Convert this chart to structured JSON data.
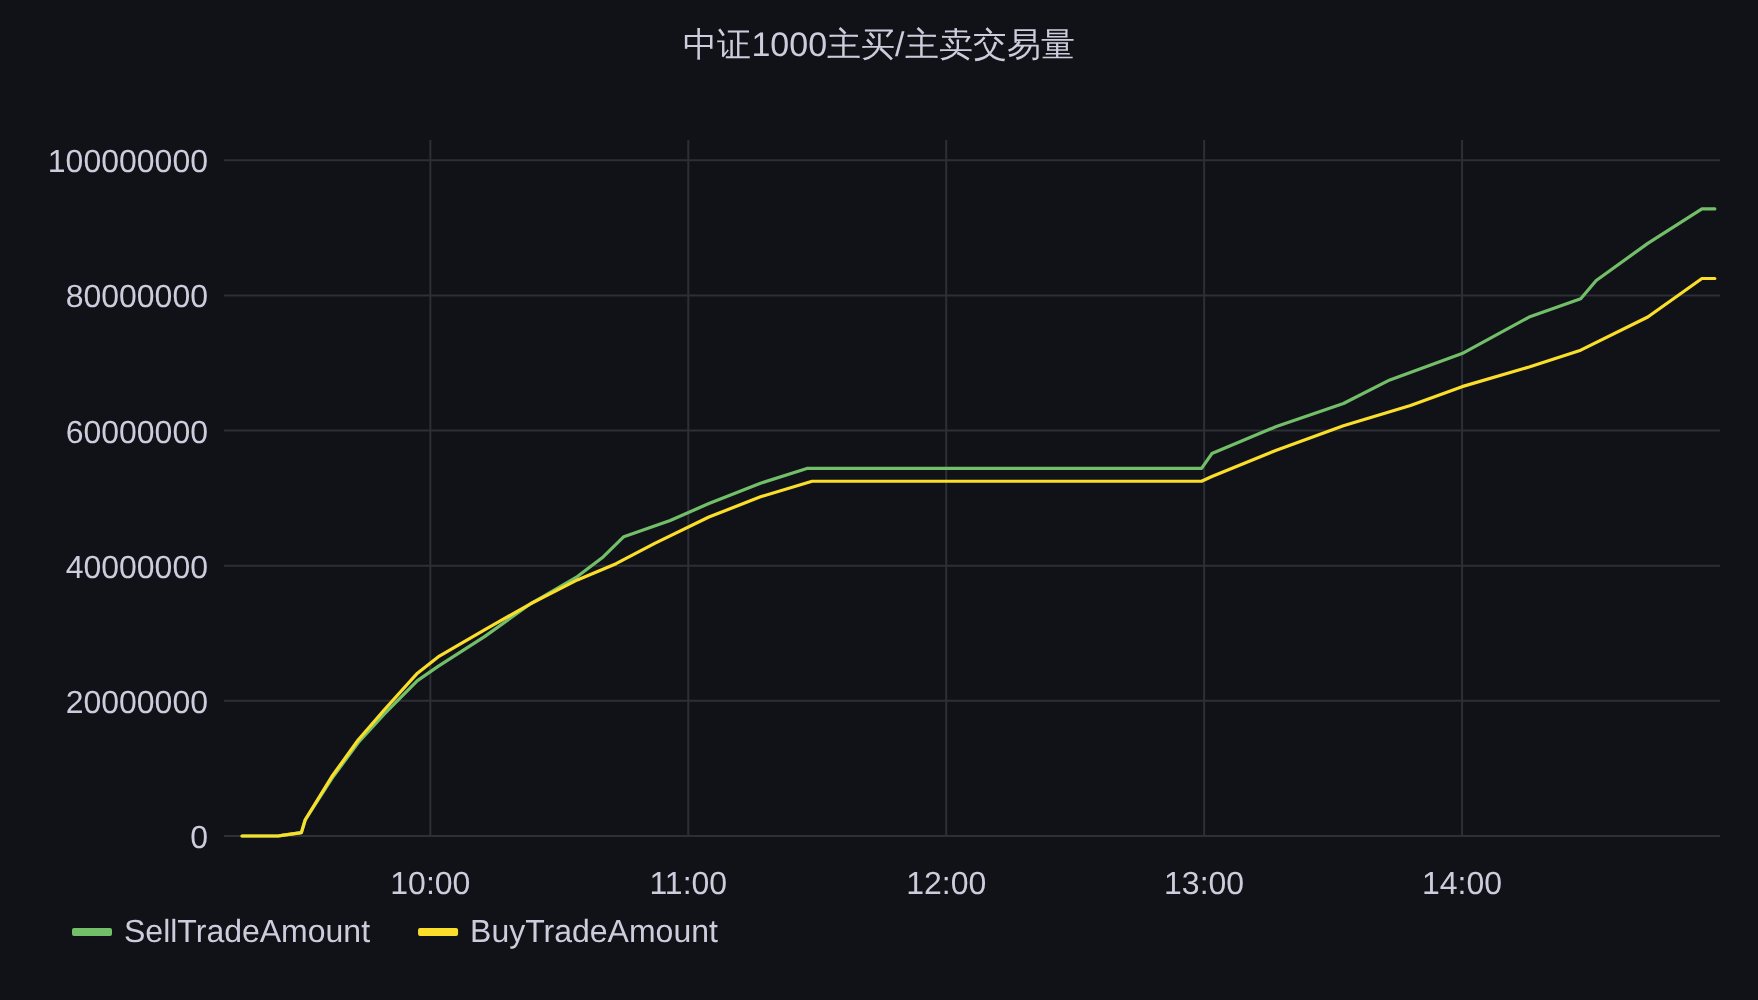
{
  "chart_data": {
    "type": "line",
    "title": "中证1000主买/主卖交易量",
    "xlim": [
      9.2,
      15.0
    ],
    "xticks": [
      {
        "value": 10,
        "label": "10:00"
      },
      {
        "value": 11,
        "label": "11:00"
      },
      {
        "value": 12,
        "label": "12:00"
      },
      {
        "value": 13,
        "label": "13:00"
      },
      {
        "value": 14,
        "label": "14:00"
      }
    ],
    "ylim": [
      0,
      103000000
    ],
    "yticks": [
      0,
      20000000,
      40000000,
      60000000,
      80000000,
      100000000
    ],
    "grid": true,
    "legend": "bottom left",
    "marker": "none",
    "line_style": "solid",
    "series": [
      {
        "name": "SellTradeAmount",
        "color": "#73bf69",
        "x": [
          9.27,
          9.41,
          9.425,
          9.5,
          9.515,
          9.618,
          9.72,
          9.82,
          9.95,
          10.03,
          10.21,
          10.39,
          10.57,
          10.67,
          10.75,
          10.93,
          11.08,
          11.28,
          11.46,
          12.99,
          13.03,
          13.28,
          13.54,
          13.72,
          14.0,
          14.26,
          14.46,
          14.52,
          14.72,
          14.93,
          14.98
        ],
        "values": [
          0,
          0,
          100000,
          500000,
          2400000,
          8500000,
          13800000,
          18000000,
          23000000,
          25100000,
          29500000,
          34400000,
          38400000,
          41300000,
          44300000,
          46700000,
          49200000,
          52200000,
          54400000,
          54400000,
          56600000,
          60600000,
          64000000,
          67500000,
          71400000,
          76800000,
          79500000,
          82200000,
          87700000,
          92800000,
          92800000
        ]
      },
      {
        "name": "BuyTradeAmount",
        "color": "#fade2a",
        "x": [
          9.27,
          9.41,
          9.425,
          9.5,
          9.515,
          9.618,
          9.72,
          9.82,
          9.95,
          10.03,
          10.21,
          10.39,
          10.57,
          10.72,
          10.87,
          11.08,
          11.28,
          11.48,
          12.99,
          13.03,
          13.28,
          13.54,
          13.8,
          14.0,
          14.26,
          14.46,
          14.72,
          14.93,
          14.98
        ],
        "values": [
          0,
          0,
          100000,
          500000,
          2400000,
          8800000,
          14200000,
          18600000,
          24100000,
          26500000,
          30500000,
          34400000,
          37900000,
          40300000,
          43300000,
          47200000,
          50200000,
          52500000,
          52500000,
          53200000,
          57100000,
          60700000,
          63700000,
          66500000,
          69400000,
          71900000,
          76800000,
          82500000,
          82500000
        ]
      }
    ]
  }
}
